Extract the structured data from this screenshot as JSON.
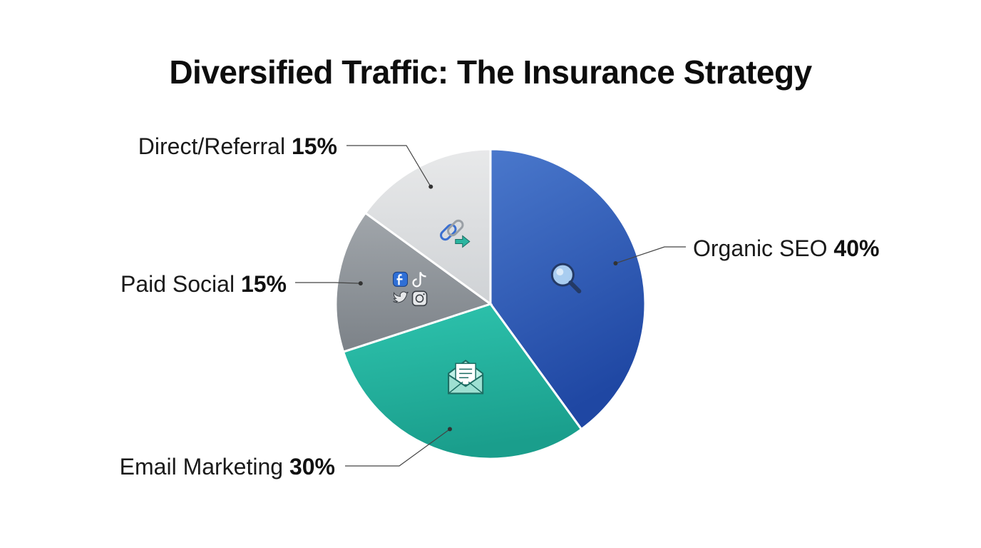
{
  "chart_data": {
    "type": "pie",
    "title": "Diversified Traffic: The Insurance Strategy",
    "slices": [
      {
        "label": "Organic SEO",
        "value": 40,
        "value_label": "40%",
        "color": "#2f5fbf",
        "icon": "search-icon"
      },
      {
        "label": "Email Marketing",
        "value": 30,
        "value_label": "30%",
        "color": "#22b3a0",
        "icon": "envelope-icon"
      },
      {
        "label": "Paid Social",
        "value": 15,
        "value_label": "15%",
        "color": "#8f959b",
        "icon": "social-media-icons"
      },
      {
        "label": "Direct/Referral",
        "value": 15,
        "value_label": "15%",
        "color": "#dcdee0",
        "icon": "link-arrow-icon"
      }
    ],
    "start_direction": "top",
    "direction": "clockwise",
    "legend": "none",
    "labels": "outside-with-leader-lines"
  }
}
